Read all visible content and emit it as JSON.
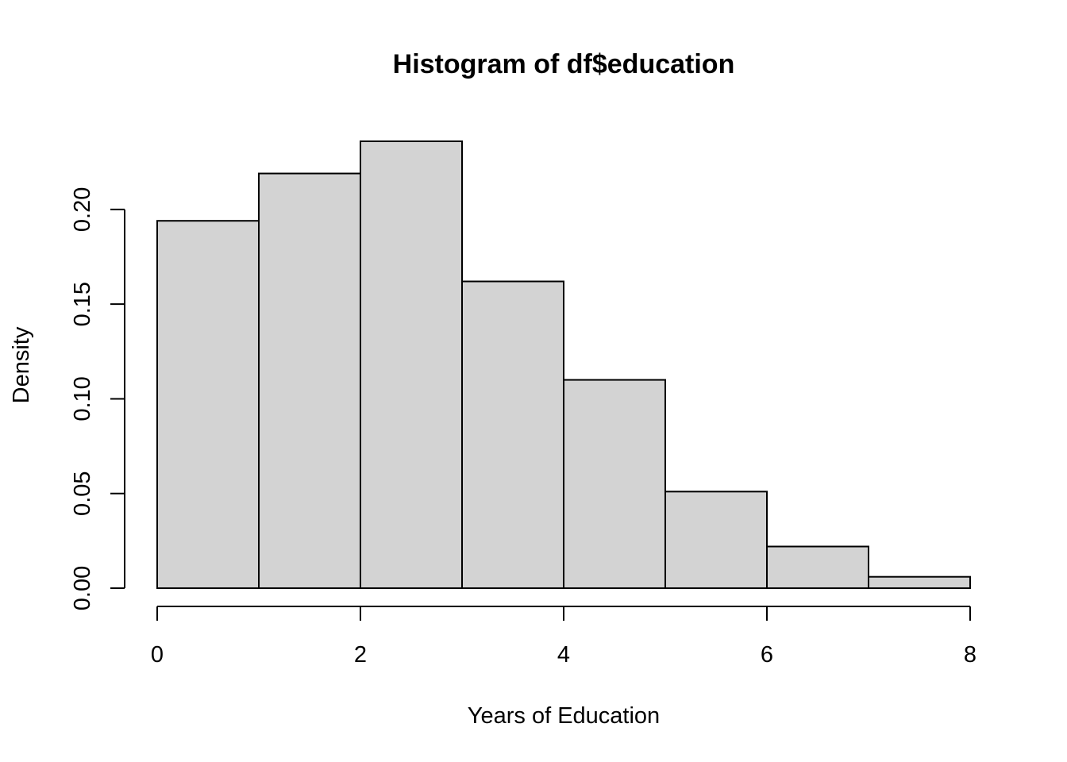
{
  "chart_data": {
    "type": "bar",
    "title": "Histogram of df$education",
    "xlabel": "Years of Education",
    "ylabel": "Density",
    "bins": [
      {
        "start": 0,
        "end": 1,
        "density": 0.194
      },
      {
        "start": 1,
        "end": 2,
        "density": 0.219
      },
      {
        "start": 2,
        "end": 3,
        "density": 0.236
      },
      {
        "start": 3,
        "end": 4,
        "density": 0.162
      },
      {
        "start": 4,
        "end": 5,
        "density": 0.11
      },
      {
        "start": 5,
        "end": 6,
        "density": 0.051
      },
      {
        "start": 6,
        "end": 7,
        "density": 0.022
      },
      {
        "start": 7,
        "end": 8,
        "density": 0.006
      }
    ],
    "xlim": [
      0,
      8
    ],
    "ylim": [
      0,
      0.236
    ],
    "x_ticks": [
      0,
      2,
      4,
      6,
      8
    ],
    "x_tick_labels": [
      "0",
      "2",
      "4",
      "6",
      "8"
    ],
    "y_ticks": [
      0,
      0.05,
      0.1,
      0.15,
      0.2
    ],
    "y_tick_labels": [
      "0.00",
      "0.05",
      "0.10",
      "0.15",
      "0.20"
    ],
    "bar_fill": "#d3d3d3",
    "bar_stroke": "#000000",
    "grid": false,
    "legend": "none"
  }
}
